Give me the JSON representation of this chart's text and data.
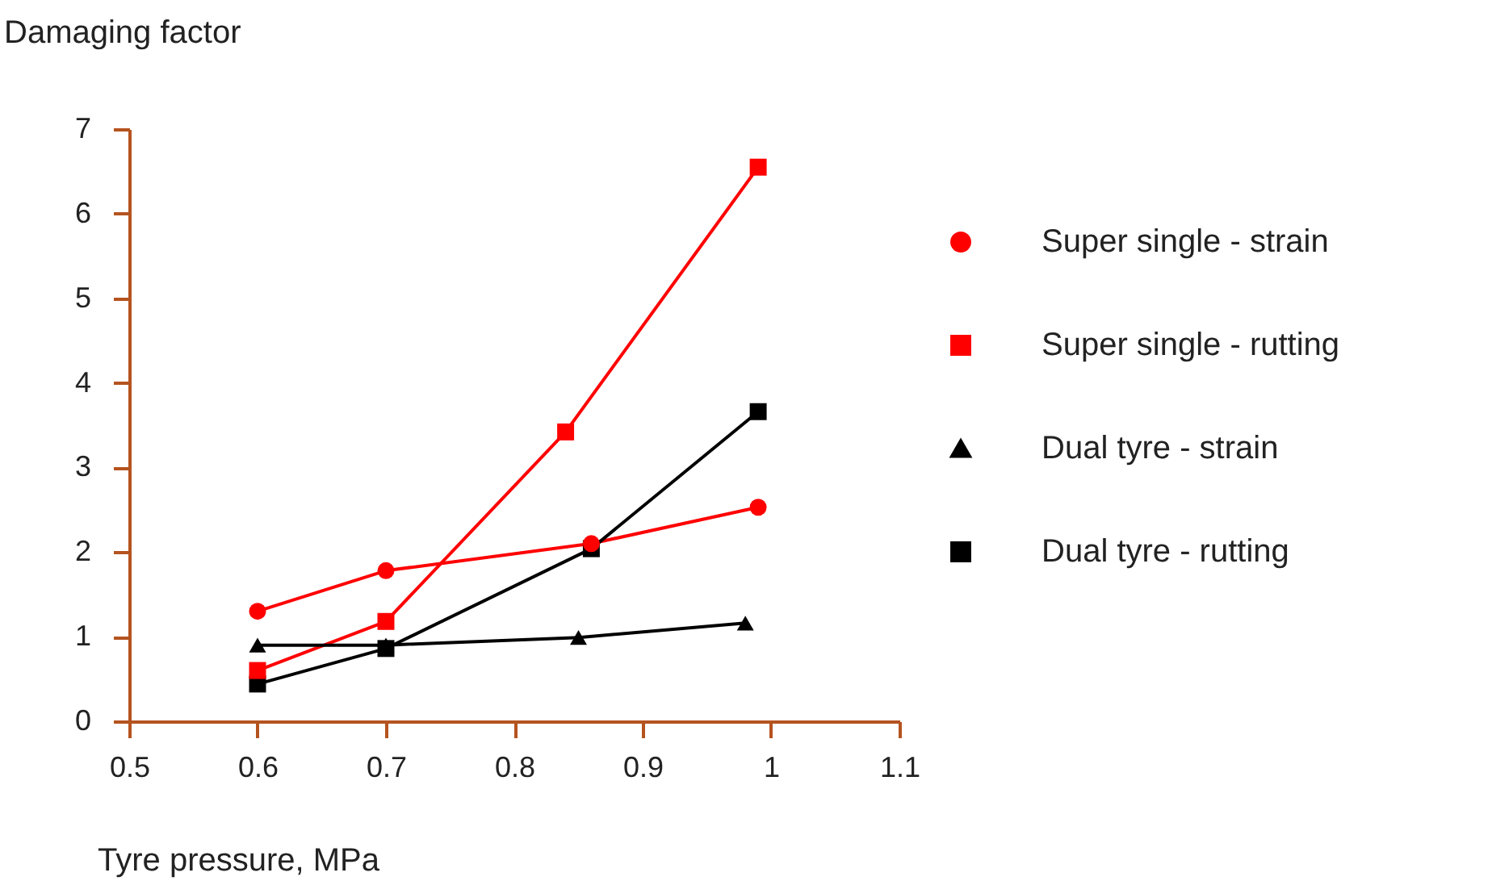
{
  "chart_data": {
    "type": "line",
    "xlabel": "Tyre pressure, MPa",
    "ylabel": "Damaging factor",
    "xlim": [
      0.5,
      1.1
    ],
    "xticks": [
      0.5,
      0.6,
      0.7,
      0.8,
      0.9,
      {
        "value": 1,
        "label": "1"
      },
      1.1
    ],
    "ylim": [
      0,
      7
    ],
    "yticks": [
      0,
      1,
      2,
      3,
      4,
      5,
      6,
      7
    ],
    "legend": "right",
    "line_style": "solid",
    "series": [
      {
        "name": "Super single - strain",
        "color": "#ff0000",
        "marker": "circle",
        "x": [
          0.6,
          0.7,
          0.86,
          0.99
        ],
        "values": [
          1.3,
          1.78,
          2.1,
          2.53
        ]
      },
      {
        "name": "Super single - rutting",
        "color": "#ff0000",
        "marker": "square",
        "x": [
          0.6,
          0.7,
          0.84,
          0.99
        ],
        "values": [
          0.6,
          1.18,
          3.42,
          6.55
        ]
      },
      {
        "name": "Dual tyre - strain",
        "color": "#000000",
        "marker": "triangle",
        "x": [
          0.6,
          0.7,
          0.85,
          0.98
        ],
        "values": [
          0.9,
          0.9,
          0.99,
          1.16
        ]
      },
      {
        "name": "Dual tyre - rutting",
        "color": "#000000",
        "marker": "square",
        "x": [
          0.6,
          0.7,
          0.86,
          0.99
        ],
        "values": [
          0.44,
          0.86,
          2.04,
          3.66
        ]
      }
    ]
  }
}
